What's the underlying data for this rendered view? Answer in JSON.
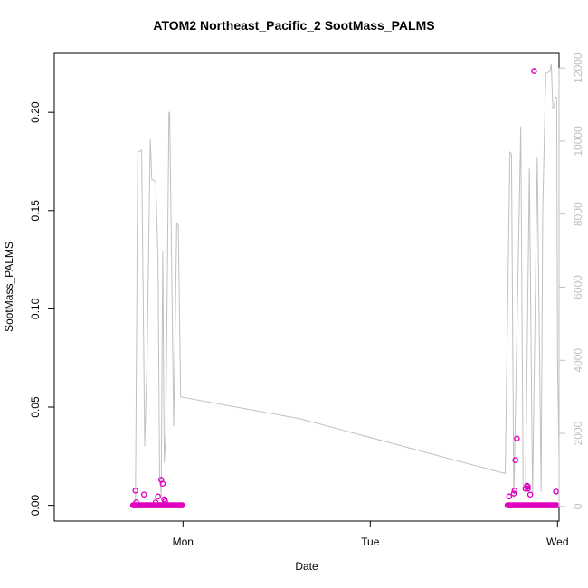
{
  "chart_data": {
    "type": "scatter",
    "title": "ATOM2 Northeast_Pacific_2 SootMass_PALMS",
    "xlabel": "Date",
    "ylabel": "SootMass_PALMS",
    "x_axis": {
      "type": "time",
      "range_hours": [
        -16.5,
        48.2
      ],
      "ticks": [
        {
          "at": 0,
          "label": "Mon"
        },
        {
          "at": 24,
          "label": "Tue"
        },
        {
          "at": 48,
          "label": "Wed"
        }
      ]
    },
    "y_axis": {
      "range": [
        -0.008,
        0.23
      ],
      "ticks": [
        0.0,
        0.05,
        0.1,
        0.15,
        0.2
      ],
      "tick_labels": [
        "0.00",
        "0.05",
        "0.10",
        "0.15",
        "0.20"
      ]
    },
    "y2_axis": {
      "range": [
        -400,
        12400
      ],
      "ticks": [
        0,
        2000,
        4000,
        6000,
        8000,
        10000,
        12000
      ],
      "tick_labels": [
        "0",
        "2000",
        "4000",
        "6000",
        "8000",
        "10000",
        "12000"
      ],
      "color": "#c0c0c0"
    },
    "grid": false,
    "series": [
      {
        "role": "points",
        "color": "#e000c0",
        "baseline_runs": [
          {
            "from": -6.4,
            "to": 0.0
          },
          {
            "from": 41.6,
            "to": 47.9
          }
        ],
        "points": [
          {
            "x": -6.1,
            "y": 0.0075
          },
          {
            "x": -6.0,
            "y": 0.0015
          },
          {
            "x": -5.0,
            "y": 0.0055
          },
          {
            "x": -3.5,
            "y": 0.0015
          },
          {
            "x": -3.2,
            "y": 0.0045
          },
          {
            "x": -2.8,
            "y": 0.013
          },
          {
            "x": -2.6,
            "y": 0.011
          },
          {
            "x": -2.4,
            "y": 0.003
          },
          {
            "x": -2.3,
            "y": 0.002
          },
          {
            "x": 41.8,
            "y": 0.0045
          },
          {
            "x": 42.4,
            "y": 0.006
          },
          {
            "x": 42.5,
            "y": 0.0075
          },
          {
            "x": 42.6,
            "y": 0.023
          },
          {
            "x": 42.8,
            "y": 0.034
          },
          {
            "x": 43.9,
            "y": 0.0085
          },
          {
            "x": 44.1,
            "y": 0.01
          },
          {
            "x": 44.2,
            "y": 0.0095
          },
          {
            "x": 44.2,
            "y": 0.0085
          },
          {
            "x": 44.5,
            "y": 0.0055
          },
          {
            "x": 45.0,
            "y": 0.221
          },
          {
            "x": 47.8,
            "y": 0.007
          }
        ]
      },
      {
        "role": "line",
        "axis": "y2",
        "color": "#c0c0c0",
        "points": [
          [
            -6.1,
            0
          ],
          [
            -5.8,
            9700
          ],
          [
            -5.3,
            9750
          ],
          [
            -4.9,
            1650
          ],
          [
            -4.6,
            4000
          ],
          [
            -4.2,
            10050
          ],
          [
            -4.0,
            8950
          ],
          [
            -3.5,
            8900
          ],
          [
            -3.2,
            6800
          ],
          [
            -3.0,
            900
          ],
          [
            -2.8,
            300
          ],
          [
            -2.6,
            7000
          ],
          [
            -2.4,
            1200
          ],
          [
            -2.2,
            2000
          ],
          [
            -1.8,
            10800
          ],
          [
            -1.7,
            10750
          ],
          [
            -1.2,
            2200
          ],
          [
            -0.8,
            7750
          ],
          [
            -0.6,
            7700
          ],
          [
            -0.3,
            3000
          ],
          [
            15.0,
            2400
          ],
          [
            41.3,
            900
          ],
          [
            41.9,
            9700
          ],
          [
            42.1,
            9650
          ],
          [
            42.4,
            200
          ],
          [
            43.3,
            10400
          ],
          [
            43.6,
            500
          ],
          [
            43.9,
            400
          ],
          [
            44.4,
            9250
          ],
          [
            44.8,
            300
          ],
          [
            45.4,
            9550
          ],
          [
            45.9,
            400
          ],
          [
            46.1,
            8000
          ],
          [
            46.5,
            11850
          ],
          [
            47.0,
            11900
          ],
          [
            47.2,
            12100
          ],
          [
            47.4,
            10900
          ],
          [
            47.6,
            10950
          ],
          [
            47.7,
            11200
          ],
          [
            47.9,
            11200
          ],
          [
            48.0,
            4000
          ],
          [
            48.2,
            1400
          ]
        ]
      }
    ]
  }
}
